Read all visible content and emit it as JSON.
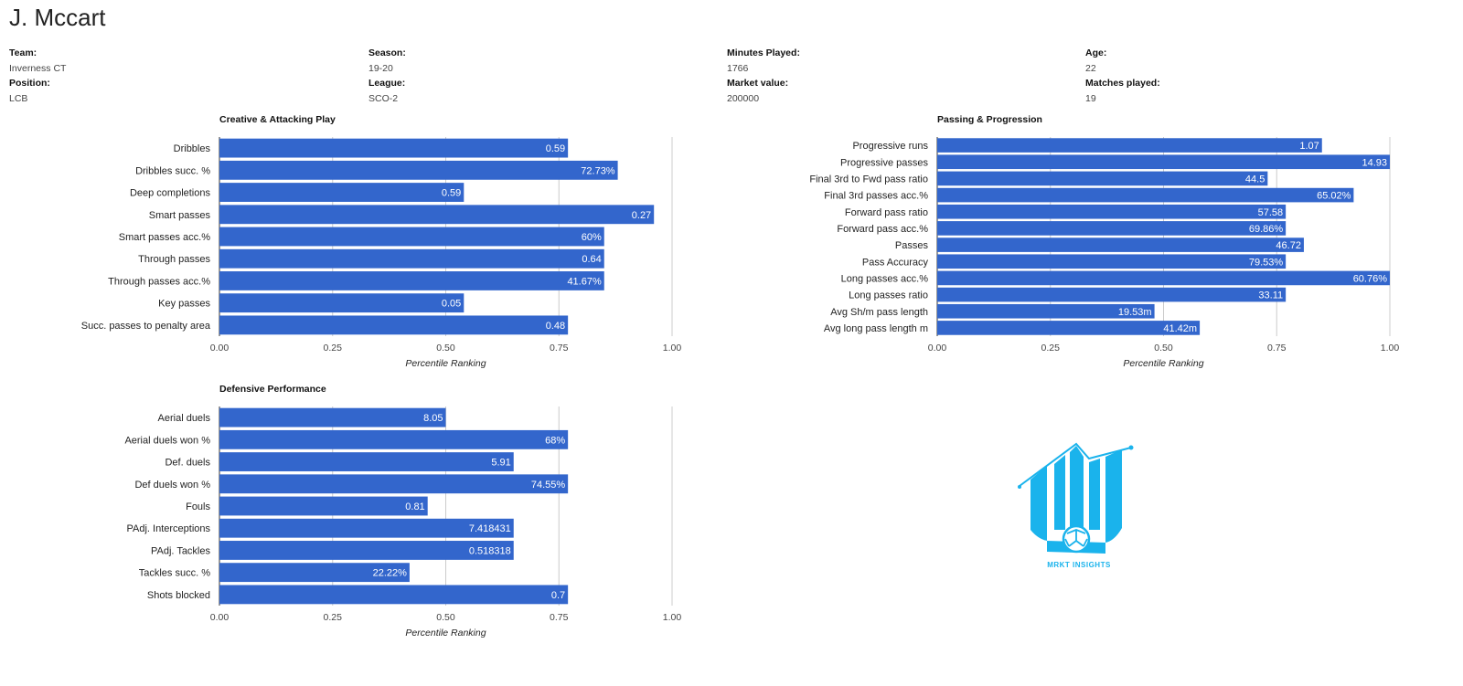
{
  "player": {
    "name": "J. Mccart"
  },
  "info": [
    {
      "label": "Team:",
      "value": "Inverness CT",
      "label2": "Position:",
      "value2": "LCB"
    },
    {
      "label": "Season:",
      "value": "19-20",
      "label2": "League:",
      "value2": "SCO-2"
    },
    {
      "label": "Minutes Played:",
      "value": "1766",
      "label2": "Market value:",
      "value2": "200000"
    },
    {
      "label": "Age:",
      "value": "22",
      "label2": "Matches played:",
      "value2": "19"
    }
  ],
  "colors": {
    "bar": "#3366cc",
    "logo": "#1ab3ec"
  },
  "logo": {
    "text": "MRKT INSIGHTS",
    "icon": "building-football-icon"
  },
  "chart_data": [
    {
      "type": "bar",
      "orientation": "horizontal",
      "title": "Creative & Attacking Play",
      "xlabel": "Percentile Ranking",
      "xlim": [
        0,
        1
      ],
      "ticks": [
        "0.00",
        "0.25",
        "0.50",
        "0.75",
        "1.00"
      ],
      "grid": true,
      "categories": [
        "Dribbles",
        "Dribbles succ. %",
        "Deep completions",
        "Smart passes",
        "Smart passes acc.%",
        "Through passes",
        "Through passes acc.%",
        "Key passes",
        "Succ. passes to penalty area"
      ],
      "values": [
        0.77,
        0.88,
        0.54,
        0.96,
        0.85,
        0.85,
        0.85,
        0.54,
        0.77
      ],
      "labels": [
        "0.59",
        "72.73%",
        "0.59",
        "0.27",
        "60%",
        "0.64",
        "41.67%",
        "0.05",
        "0.48"
      ]
    },
    {
      "type": "bar",
      "orientation": "horizontal",
      "title": "Passing & Progression",
      "xlabel": "Percentile Ranking",
      "xlim": [
        0,
        1
      ],
      "ticks": [
        "0.00",
        "0.25",
        "0.50",
        "0.75",
        "1.00"
      ],
      "grid": true,
      "categories": [
        "Progressive runs",
        "Progressive passes",
        "Final 3rd to Fwd pass ratio",
        "Final 3rd passes acc.%",
        "Forward pass ratio",
        "Forward pass acc.%",
        "Passes",
        "Pass Accuracy",
        "Long passes acc.%",
        "Long passes ratio",
        "Avg Sh/m pass length",
        "Avg long pass length m"
      ],
      "values": [
        0.85,
        1.0,
        0.73,
        0.92,
        0.77,
        0.77,
        0.81,
        0.77,
        1.0,
        0.77,
        0.48,
        0.58
      ],
      "labels": [
        "1.07",
        "14.93",
        "44.5",
        "65.02%",
        "57.58",
        "69.86%",
        "46.72",
        "79.53%",
        "60.76%",
        "33.11",
        "19.53m",
        "41.42m"
      ]
    },
    {
      "type": "bar",
      "orientation": "horizontal",
      "title": "Defensive Performance",
      "xlabel": "Percentile Ranking",
      "xlim": [
        0,
        1
      ],
      "ticks": [
        "0.00",
        "0.25",
        "0.50",
        "0.75",
        "1.00"
      ],
      "grid": true,
      "categories": [
        "Aerial duels",
        "Aerial duels won %",
        "Def. duels",
        "Def duels won %",
        "Fouls",
        "PAdj. Interceptions",
        "PAdj. Tackles",
        "Tackles succ. %",
        "Shots blocked"
      ],
      "values": [
        0.5,
        0.77,
        0.65,
        0.77,
        0.46,
        0.65,
        0.65,
        0.42,
        0.77
      ],
      "labels": [
        "8.05",
        "68%",
        "5.91",
        "74.55%",
        "0.81",
        "7.418431",
        "0.518318",
        "22.22%",
        "0.7"
      ]
    }
  ]
}
